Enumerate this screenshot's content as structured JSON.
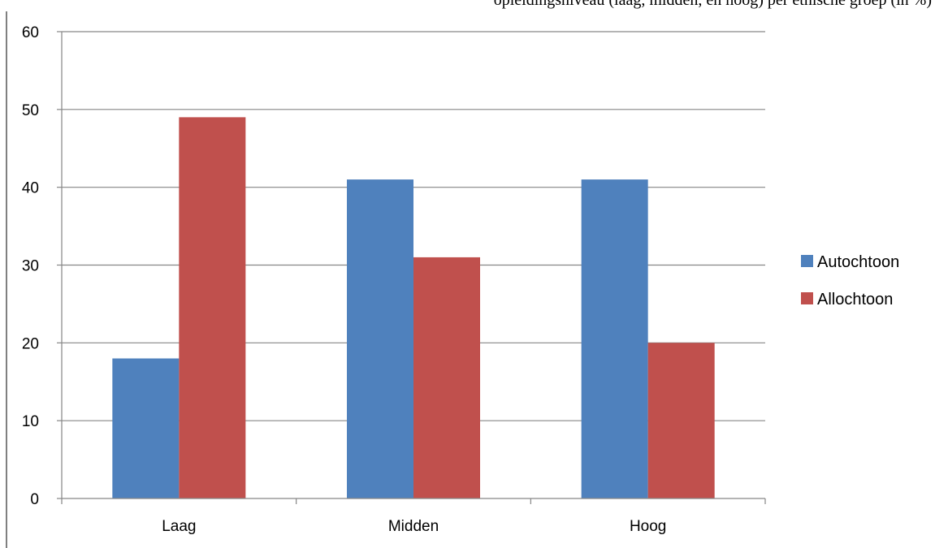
{
  "caption": "opleidingsniveau (laag, midden, en hoog) per etnische groep (in %)",
  "chart_data": {
    "type": "bar",
    "categories": [
      "Laag",
      "Midden",
      "Hoog"
    ],
    "series": [
      {
        "name": "Autochtoon",
        "values": [
          18,
          41,
          41
        ],
        "color": "#4F81BD"
      },
      {
        "name": "Allochtoon",
        "values": [
          49,
          31,
          20
        ],
        "color": "#C0504D"
      }
    ],
    "ylim": [
      0,
      60
    ],
    "yticks": [
      0,
      10,
      20,
      30,
      40,
      50,
      60
    ],
    "grid": true,
    "legend_position": "right",
    "title": "",
    "xlabel": "",
    "ylabel": ""
  }
}
